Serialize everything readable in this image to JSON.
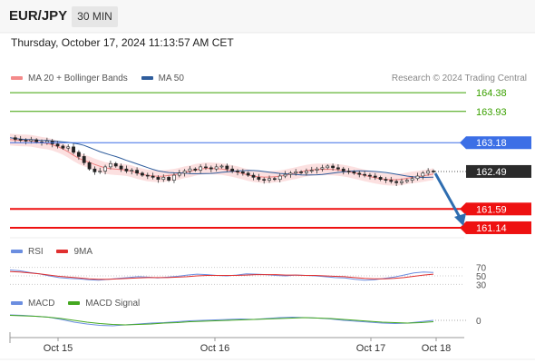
{
  "header": {
    "symbol": "EUR/JPY",
    "timeframe": "30 MIN",
    "datetime": "Thursday, October 17, 2024 11:13:57 AM CET",
    "credit": "Research © 2024 Trading Central"
  },
  "colors": {
    "target": "#3aa000",
    "pivot": "#3c6fe6",
    "support": "#ee1111",
    "current": "#333333",
    "bollinger": "#f4a0a0",
    "ma50": "#2f5d9c",
    "rsi": "#6b8ee0",
    "rsi_ma": "#e03030",
    "macd": "#6b8ee0",
    "macd_signal": "#44a820",
    "arrow": "#2e6db0"
  },
  "chart_data": [
    {
      "type": "candlestick",
      "title": "",
      "legend": [
        "MA 20 + Bollinger Bands",
        "MA 50"
      ],
      "ylim": [
        160.9,
        164.6
      ],
      "x_ticks": [
        "Oct 15",
        "Oct 16",
        "Oct 17",
        "Oct 18"
      ],
      "levels": [
        {
          "label": "164.38",
          "value": 164.38,
          "kind": "target"
        },
        {
          "label": "163.93",
          "value": 163.93,
          "kind": "target"
        },
        {
          "label": "163.18",
          "value": 163.18,
          "kind": "pivot"
        },
        {
          "label": "162.49",
          "value": 162.49,
          "kind": "current"
        },
        {
          "label": "161.59",
          "value": 161.59,
          "kind": "support"
        },
        {
          "label": "161.14",
          "value": 161.14,
          "kind": "support"
        }
      ],
      "close_series": [
        163.3,
        163.26,
        163.24,
        163.22,
        163.25,
        163.2,
        163.18,
        163.22,
        163.15,
        163.1,
        163.05,
        163.08,
        162.95,
        162.85,
        162.7,
        162.55,
        162.48,
        162.5,
        162.6,
        162.68,
        162.62,
        162.55,
        162.5,
        162.52,
        162.45,
        162.4,
        162.38,
        162.35,
        162.3,
        162.35,
        162.28,
        162.4,
        162.45,
        162.5,
        162.55,
        162.52,
        162.6,
        162.58,
        162.55,
        162.6,
        162.62,
        162.55,
        162.5,
        162.48,
        162.45,
        162.4,
        162.35,
        162.3,
        162.28,
        162.32,
        162.3,
        162.38,
        162.42,
        162.45,
        162.48,
        162.46,
        162.5,
        162.52,
        162.55,
        162.58,
        162.62,
        162.58,
        162.55,
        162.5,
        162.48,
        162.45,
        162.42,
        162.4,
        162.38,
        162.35,
        162.3,
        162.28,
        162.25,
        162.22,
        162.25,
        162.28,
        162.32,
        162.38,
        162.45,
        162.5,
        162.49
      ],
      "arrow": {
        "from": 162.49,
        "to": 161.14
      }
    },
    {
      "type": "line",
      "legend": [
        "RSI",
        "9MA"
      ],
      "y_ticks": [
        "70",
        "50",
        "30"
      ],
      "series": [
        {
          "name": "RSI",
          "values": [
            64,
            62,
            58,
            55,
            50,
            46,
            44,
            43,
            41,
            40,
            42,
            44,
            46,
            48,
            47,
            45,
            47,
            49,
            52,
            54,
            53,
            51,
            50,
            52,
            55,
            54,
            53,
            51,
            50,
            52,
            51,
            50,
            48,
            46,
            45,
            42,
            40,
            41,
            44,
            47,
            52,
            57,
            59,
            58
          ]
        },
        {
          "name": "9MA",
          "values": [
            60,
            59,
            57,
            55,
            52,
            49,
            47,
            45,
            43,
            42,
            42,
            43,
            44,
            45,
            46,
            46,
            46,
            47,
            48,
            50,
            51,
            51,
            51,
            51,
            52,
            53,
            53,
            53,
            52,
            52,
            51,
            51,
            50,
            49,
            48,
            46,
            44,
            43,
            43,
            44,
            46,
            49,
            52,
            54
          ]
        }
      ]
    },
    {
      "type": "line",
      "legend": [
        "MACD",
        "MACD Signal"
      ],
      "y_ticks": [
        "0"
      ],
      "series": [
        {
          "name": "MACD",
          "values": [
            0.12,
            0.11,
            0.09,
            0.07,
            0.02,
            -0.04,
            -0.08,
            -0.11,
            -0.12,
            -0.1,
            -0.08,
            -0.06,
            -0.05,
            -0.03,
            -0.01,
            0.0,
            0.01,
            0.02,
            0.03,
            0.02,
            0.04,
            0.06,
            0.07,
            0.06,
            0.05,
            0.03,
            0.0,
            -0.02,
            -0.04,
            -0.06,
            -0.07,
            -0.06,
            -0.03,
            0.0
          ]
        },
        {
          "name": "MACD Signal",
          "values": [
            0.11,
            0.1,
            0.09,
            0.07,
            0.04,
            0.0,
            -0.04,
            -0.07,
            -0.09,
            -0.1,
            -0.09,
            -0.08,
            -0.06,
            -0.05,
            -0.03,
            -0.02,
            -0.01,
            0.0,
            0.01,
            0.02,
            0.03,
            0.04,
            0.05,
            0.06,
            0.05,
            0.04,
            0.02,
            0.0,
            -0.02,
            -0.04,
            -0.05,
            -0.06,
            -0.05,
            -0.03
          ]
        }
      ]
    }
  ]
}
